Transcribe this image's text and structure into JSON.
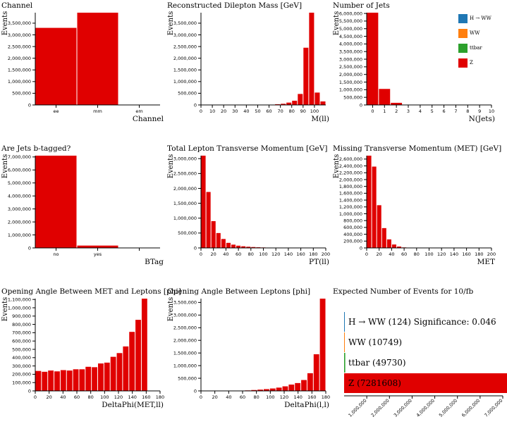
{
  "colors": {
    "H -> WW": "#1f77b4",
    "WW": "#ff7f0e",
    "ttbar": "#2ca02c",
    "Z": "#e00000"
  },
  "legend": {
    "items": [
      {
        "name": "H → WW",
        "color": "#1f77b4"
      },
      {
        "name": "WW",
        "color": "#ff7f0e"
      },
      {
        "name": "ttbar",
        "color": "#2ca02c"
      },
      {
        "name": "Z",
        "color": "#e00000"
      }
    ]
  },
  "summary": {
    "title": "Expected Number of Events for 10/fb",
    "bars": [
      {
        "label": "H → WW (124) Significance: 0.046",
        "value": 124,
        "color": "#1f77b4"
      },
      {
        "label": "WW (10749)",
        "value": 10749,
        "color": "#ff7f0e"
      },
      {
        "label": "ttbar (49730)",
        "value": 49730,
        "color": "#2ca02c"
      },
      {
        "label": "Z (7281608)",
        "value": 7281608,
        "color": "#e00000"
      }
    ],
    "xlim": [
      0,
      7000000
    ],
    "xticks": [
      "1,000,000",
      "2,000,000",
      "3,000,000",
      "4,000,000",
      "5,000,000",
      "6,000,000",
      "7,000,000"
    ]
  },
  "chart_data": [
    {
      "type": "bar",
      "title": "Channel",
      "xlabel": "Channel",
      "ylabel": "Events",
      "categories": [
        "ee",
        "mm",
        "em"
      ],
      "values": [
        3300000,
        3950000,
        0
      ],
      "ylim": [
        0,
        3950000
      ],
      "yticks": [
        0,
        500000,
        1000000,
        1500000,
        2000000,
        2500000,
        3000000,
        3500000
      ]
    },
    {
      "type": "histogram",
      "title": "Reconstructed Dilepton Mass [GeV]",
      "xlabel": "M(ll)",
      "ylabel": "Events",
      "bin_width": 5,
      "xlim": [
        0,
        110
      ],
      "ylim": [
        0,
        3950000
      ],
      "xticks": [
        0,
        10,
        20,
        30,
        40,
        50,
        60,
        70,
        80,
        90,
        100
      ],
      "yticks": [
        0,
        500000,
        1000000,
        1500000,
        2000000,
        2500000,
        3000000,
        3500000
      ],
      "bins": [
        [
          60,
          15000
        ],
        [
          65,
          30000
        ],
        [
          70,
          50000
        ],
        [
          75,
          100000
        ],
        [
          80,
          180000
        ],
        [
          85,
          470000
        ],
        [
          90,
          2450000
        ],
        [
          95,
          3950000
        ],
        [
          100,
          530000
        ],
        [
          105,
          150000
        ]
      ]
    },
    {
      "type": "histogram",
      "title": "Number of Jets",
      "xlabel": "N(Jets)",
      "ylabel": "Events",
      "bin_width": 1,
      "xlim": [
        -0.5,
        10
      ],
      "ylim": [
        0,
        6050000
      ],
      "xticks": [
        0,
        1,
        2,
        3,
        4,
        5,
        6,
        7,
        8,
        9,
        10
      ],
      "yticks": [
        0,
        500000,
        1000000,
        1500000,
        2000000,
        2500000,
        3000000,
        3500000,
        4000000,
        4500000,
        5000000,
        5500000,
        6000000
      ],
      "bins": [
        [
          -0.5,
          6050000
        ],
        [
          0.5,
          1050000
        ],
        [
          1.5,
          140000
        ],
        [
          2.5,
          20000
        ],
        [
          3.5,
          3000
        ]
      ]
    },
    {
      "type": "bar",
      "title": "Are Jets b-tagged?",
      "xlabel": "BTag",
      "ylabel": "Events",
      "categories": [
        "no",
        "yes",
        ""
      ],
      "values": [
        7100000,
        180000,
        0
      ],
      "ylim": [
        0,
        7100000
      ],
      "yticks": [
        0,
        1000000,
        2000000,
        3000000,
        4000000,
        5000000,
        6000000,
        7000000
      ]
    },
    {
      "type": "histogram",
      "title": "Total Lepton Transverse Momentum [GeV]",
      "xlabel": "PT(ll)",
      "ylabel": "Events",
      "bin_width": 8,
      "xlim": [
        0,
        200
      ],
      "ylim": [
        0,
        3100000
      ],
      "xticks": [
        0,
        20,
        40,
        60,
        80,
        100,
        120,
        140,
        160,
        180,
        200
      ],
      "yticks": [
        0,
        500000,
        1000000,
        1500000,
        2000000,
        2500000,
        3000000
      ],
      "bins": [
        [
          0,
          3100000
        ],
        [
          8,
          1880000
        ],
        [
          16,
          900000
        ],
        [
          24,
          500000
        ],
        [
          32,
          300000
        ],
        [
          40,
          170000
        ],
        [
          48,
          110000
        ],
        [
          56,
          75000
        ],
        [
          64,
          55000
        ],
        [
          72,
          40000
        ],
        [
          80,
          30000
        ],
        [
          88,
          22000
        ],
        [
          96,
          16000
        ],
        [
          104,
          12000
        ],
        [
          112,
          9000
        ],
        [
          120,
          7000
        ],
        [
          128,
          5000
        ],
        [
          136,
          4000
        ],
        [
          144,
          3000
        ],
        [
          152,
          2000
        ],
        [
          160,
          1500
        ],
        [
          168,
          1000
        ],
        [
          176,
          800
        ],
        [
          184,
          600
        ],
        [
          192,
          400
        ]
      ]
    },
    {
      "type": "histogram",
      "title": "Missing Transverse Momentum (MET) [GeV]",
      "xlabel": "MET",
      "ylabel": "Events",
      "bin_width": 8,
      "xlim": [
        0,
        200
      ],
      "ylim": [
        0,
        2700000
      ],
      "xticks": [
        0,
        20,
        40,
        60,
        80,
        100,
        120,
        140,
        160,
        180,
        200
      ],
      "yticks": [
        0,
        200000,
        400000,
        600000,
        800000,
        1000000,
        1200000,
        1400000,
        1600000,
        1800000,
        2000000,
        2200000,
        2400000,
        2600000
      ],
      "bins": [
        [
          0,
          2700000
        ],
        [
          8,
          2380000
        ],
        [
          16,
          1250000
        ],
        [
          24,
          580000
        ],
        [
          32,
          250000
        ],
        [
          40,
          100000
        ],
        [
          48,
          40000
        ],
        [
          56,
          15000
        ],
        [
          64,
          6000
        ],
        [
          72,
          2500
        ],
        [
          80,
          1000
        ]
      ]
    },
    {
      "type": "histogram",
      "title": "Opening Angle Between MET and Leptons [phi]",
      "xlabel": "DeltaPhi(MET,ll)",
      "ylabel": "Events",
      "bin_width": 9,
      "xlim": [
        0,
        180
      ],
      "ylim": [
        0,
        1110000
      ],
      "xticks": [
        0,
        20,
        40,
        60,
        80,
        100,
        120,
        140,
        160,
        180
      ],
      "yticks": [
        0,
        100000,
        200000,
        300000,
        400000,
        500000,
        600000,
        700000,
        800000,
        900000,
        1000000,
        1100000
      ],
      "bins": [
        [
          0,
          240000
        ],
        [
          9,
          230000
        ],
        [
          18,
          245000
        ],
        [
          27,
          235000
        ],
        [
          36,
          250000
        ],
        [
          45,
          245000
        ],
        [
          54,
          260000
        ],
        [
          63,
          260000
        ],
        [
          72,
          290000
        ],
        [
          81,
          285000
        ],
        [
          90,
          330000
        ],
        [
          99,
          340000
        ],
        [
          108,
          410000
        ],
        [
          117,
          455000
        ],
        [
          126,
          535000
        ],
        [
          135,
          710000
        ],
        [
          144,
          855000
        ],
        [
          153,
          1110000
        ]
      ]
    },
    {
      "type": "histogram",
      "title": "Opening Angle Between Leptons [phi]",
      "xlabel": "DeltaPhi(l,l)",
      "ylabel": "Events",
      "bin_width": 9,
      "xlim": [
        0,
        180
      ],
      "ylim": [
        0,
        3650000
      ],
      "xticks": [
        0,
        20,
        40,
        60,
        80,
        100,
        120,
        140,
        160,
        180
      ],
      "yticks": [
        0,
        500000,
        1000000,
        1500000,
        2000000,
        2500000,
        3000000,
        3500000
      ],
      "bins": [
        [
          63,
          20000
        ],
        [
          72,
          35000
        ],
        [
          81,
          50000
        ],
        [
          90,
          70000
        ],
        [
          99,
          95000
        ],
        [
          108,
          130000
        ],
        [
          117,
          180000
        ],
        [
          126,
          250000
        ],
        [
          135,
          310000
        ],
        [
          144,
          430000
        ],
        [
          153,
          700000
        ],
        [
          162,
          1450000
        ],
        [
          171,
          3650000
        ]
      ]
    }
  ]
}
